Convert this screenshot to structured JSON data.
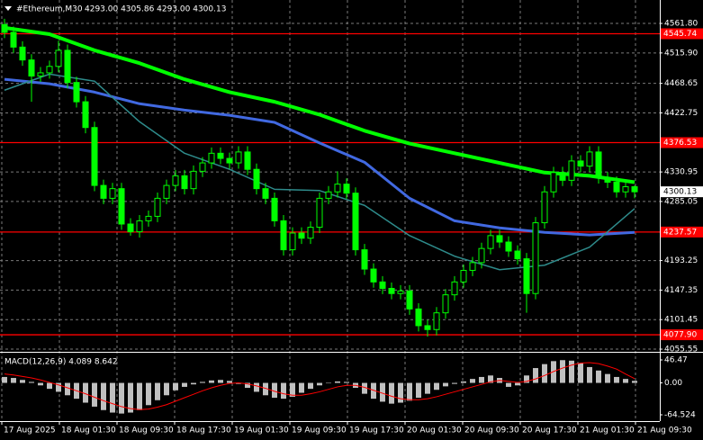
{
  "chart_data": [
    {
      "type": "candlestick",
      "title": "#Ethereum,M30",
      "quote": "4293.00 4305.86 4293.00 4300.13",
      "candle_color": "#00ff00",
      "open": [
        4560,
        4548,
        4525,
        4505,
        4480,
        4485,
        4495,
        4520,
        4470,
        4440,
        4400,
        4310,
        4290,
        4305,
        4250,
        4238,
        4255,
        4262,
        4290,
        4310,
        4325,
        4305,
        4332,
        4345,
        4360,
        4352,
        4345,
        4362,
        4335,
        4305,
        4290,
        4255,
        4210,
        4236,
        4228,
        4245,
        4290,
        4300,
        4312,
        4298,
        4210,
        4180,
        4160,
        4150,
        4142,
        4146,
        4118,
        4092,
        4086,
        4112,
        4140,
        4160,
        4178,
        4190,
        4212,
        4232,
        4222,
        4208,
        4196,
        4142,
        4252,
        4300,
        4330,
        4318,
        4348,
        4340,
        4362,
        4322,
        4315,
        4300,
        4308
      ],
      "high": [
        4569,
        4557,
        4534,
        4514,
        4494,
        4504,
        4535,
        4529,
        4479,
        4449,
        4409,
        4319,
        4314,
        4314,
        4259,
        4264,
        4271,
        4299,
        4319,
        4334,
        4334,
        4341,
        4354,
        4369,
        4369,
        4361,
        4371,
        4371,
        4344,
        4314,
        4299,
        4264,
        4245,
        4245,
        4254,
        4299,
        4309,
        4332,
        4321,
        4307,
        4219,
        4189,
        4169,
        4159,
        4155,
        4155,
        4127,
        4101,
        4121,
        4149,
        4169,
        4187,
        4199,
        4221,
        4241,
        4241,
        4231,
        4217,
        4205,
        4261,
        4309,
        4339,
        4339,
        4357,
        4357,
        4371,
        4371,
        4331,
        4324,
        4317,
        4310
      ],
      "low": [
        4539,
        4516,
        4496,
        4440,
        4471,
        4476,
        4486,
        4461,
        4431,
        4391,
        4301,
        4281,
        4281,
        4241,
        4232,
        4229,
        4246,
        4253,
        4281,
        4301,
        4296,
        4296,
        4323,
        4336,
        4343,
        4336,
        4336,
        4326,
        4296,
        4281,
        4246,
        4201,
        4201,
        4219,
        4219,
        4236,
        4281,
        4291,
        4289,
        4201,
        4171,
        4151,
        4141,
        4133,
        4133,
        4109,
        4083,
        4075,
        4077,
        4103,
        4131,
        4151,
        4169,
        4181,
        4203,
        4213,
        4199,
        4187,
        4112,
        4133,
        4243,
        4291,
        4309,
        4309,
        4331,
        4331,
        4313,
        4306,
        4291,
        4291,
        4290
      ],
      "close": [
        4548,
        4525,
        4505,
        4480,
        4485,
        4495,
        4520,
        4470,
        4440,
        4400,
        4310,
        4290,
        4305,
        4250,
        4238,
        4255,
        4262,
        4290,
        4310,
        4325,
        4305,
        4332,
        4345,
        4360,
        4352,
        4345,
        4362,
        4335,
        4305,
        4290,
        4255,
        4210,
        4236,
        4228,
        4245,
        4290,
        4300,
        4312,
        4298,
        4210,
        4180,
        4160,
        4150,
        4142,
        4146,
        4118,
        4092,
        4086,
        4112,
        4140,
        4160,
        4178,
        4190,
        4212,
        4232,
        4222,
        4208,
        4196,
        4142,
        4252,
        4300,
        4330,
        4318,
        4348,
        4340,
        4362,
        4322,
        4315,
        4300,
        4308,
        4300.13
      ],
      "ma_x": [
        0,
        5,
        10,
        15,
        20,
        25,
        30,
        35,
        40,
        45,
        50,
        55,
        60,
        65,
        70
      ],
      "series": [
        {
          "color": "#00ff00",
          "width": 4,
          "values": [
            4555,
            4545,
            4520,
            4500,
            4475,
            4455,
            4440,
            4420,
            4395,
            4375,
            4360,
            4345,
            4330,
            4325,
            4315
          ]
        },
        {
          "color": "#4169e1",
          "width": 3,
          "values": [
            4475,
            4468,
            4455,
            4437,
            4427,
            4419,
            4408,
            4376,
            4346,
            4290,
            4255,
            4244,
            4237,
            4233,
            4237
          ]
        },
        {
          "color": "#2e8b8b",
          "width": 1.5,
          "values": [
            4458,
            4483,
            4472,
            4409,
            4360,
            4335,
            4304,
            4302,
            4279,
            4232,
            4200,
            4179,
            4186,
            4214,
            4274
          ]
        }
      ],
      "levels": [
        {
          "value": 4545.74,
          "label": "4545.74"
        },
        {
          "value": 4376.53,
          "label": "4376.53"
        },
        {
          "value": 4237.57,
          "label": "4237.57"
        },
        {
          "value": 4077.9,
          "label": "4077.90"
        }
      ],
      "level_color": "#ff0000",
      "last_price": 4300.13,
      "xlim": [
        -0.5,
        72.8
      ],
      "xticks": [
        {
          "value": -0.3,
          "label": "17 Aug 2025"
        },
        {
          "value": 6.1,
          "label": "18 Aug 01:30"
        },
        {
          "value": 12.5,
          "label": "18 Aug 09:30"
        },
        {
          "value": 18.9,
          "label": "18 Aug 17:30"
        },
        {
          "value": 25.3,
          "label": "19 Aug 01:30"
        },
        {
          "value": 31.7,
          "label": "19 Aug 09:30"
        },
        {
          "value": 38.1,
          "label": "19 Aug 17:30"
        },
        {
          "value": 44.5,
          "label": "20 Aug 01:30"
        },
        {
          "value": 50.9,
          "label": "20 Aug 09:30"
        },
        {
          "value": 57.3,
          "label": "20 Aug 17:30"
        },
        {
          "value": 63.7,
          "label": "21 Aug 01:30"
        },
        {
          "value": 70.1,
          "label": "21 Aug 09:30"
        }
      ],
      "ylim": [
        4052.8,
        4598.2
      ],
      "yticks": [
        {
          "value": 4561.8,
          "label": "4561.80"
        },
        {
          "value": 4515.9,
          "label": "4515.90"
        },
        4468.65,
        4422.75,
        4330.95,
        4285.05,
        4193.25,
        4147.35,
        4101.45,
        4055.55
      ],
      "grid": true
    },
    {
      "type": "macd",
      "title": "MACD(12,26,9) 4.089 8.642",
      "hist_color": "#c0c0c0",
      "signal_color": "#ff0000",
      "values": [
        12,
        10,
        6,
        2,
        -5,
        -12,
        -18,
        -25,
        -32,
        -40,
        -48,
        -55,
        -60,
        -62,
        -60,
        -55,
        -45,
        -35,
        -25,
        -15,
        -8,
        -3,
        2,
        5,
        6,
        4,
        -2,
        -10,
        -18,
        -25,
        -30,
        -32,
        -28,
        -20,
        -12,
        -5,
        0,
        3,
        2,
        -10,
        -22,
        -32,
        -38,
        -42,
        -40,
        -36,
        -30,
        -22,
        -14,
        -7,
        -2,
        3,
        8,
        12,
        15,
        10,
        -8,
        -5,
        15,
        30,
        38,
        44,
        46,
        45,
        40,
        32,
        25,
        18,
        12,
        8,
        4.089
      ],
      "signal": [
        18,
        16,
        13,
        10,
        6,
        1,
        -4,
        -10,
        -16,
        -22,
        -29,
        -36,
        -42,
        -48,
        -52,
        -54,
        -53,
        -49,
        -44,
        -37,
        -30,
        -23,
        -16,
        -10,
        -5,
        -1,
        0,
        -2,
        -6,
        -11,
        -17,
        -22,
        -25,
        -25,
        -22,
        -18,
        -13,
        -8,
        -5,
        -5,
        -9,
        -15,
        -21,
        -27,
        -32,
        -34,
        -34,
        -32,
        -28,
        -23,
        -18,
        -13,
        -8,
        -3,
        2,
        5,
        3,
        1,
        3,
        8,
        15,
        23,
        30,
        36,
        40,
        41,
        39,
        34,
        28,
        18,
        8.642
      ],
      "ylim": [
        -77.25,
        59.2
      ],
      "yticks": [
        46.47,
        {
          "value": 0,
          "label": "0.00"
        },
        -64.524
      ]
    }
  ]
}
